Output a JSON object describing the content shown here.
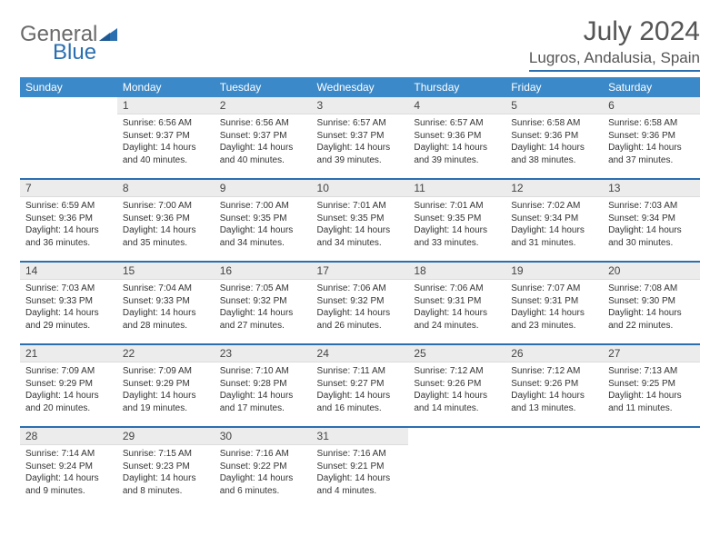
{
  "logo": {
    "word1": "General",
    "word2": "Blue"
  },
  "header": {
    "title": "July 2024",
    "location": "Lugros, Andalusia, Spain"
  },
  "styling": {
    "page_bg": "#ffffff",
    "accent": "#2b6fb0",
    "header_row_bg": "#3b89c9",
    "header_row_fg": "#ffffff",
    "daynum_bg": "#ececec",
    "text_color": "#333333",
    "logo_gray": "#6a6a6a",
    "title_fontsize": 30,
    "location_fontsize": 17,
    "th_fontsize": 12,
    "daynum_fontsize": 12,
    "body_fontsize": 10
  },
  "weekdays": [
    "Sunday",
    "Monday",
    "Tuesday",
    "Wednesday",
    "Thursday",
    "Friday",
    "Saturday"
  ],
  "start_offset": 1,
  "days_in_month": 31,
  "days": {
    "1": {
      "sunrise": "6:56 AM",
      "sunset": "9:37 PM",
      "daylight": "14 hours and 40 minutes."
    },
    "2": {
      "sunrise": "6:56 AM",
      "sunset": "9:37 PM",
      "daylight": "14 hours and 40 minutes."
    },
    "3": {
      "sunrise": "6:57 AM",
      "sunset": "9:37 PM",
      "daylight": "14 hours and 39 minutes."
    },
    "4": {
      "sunrise": "6:57 AM",
      "sunset": "9:36 PM",
      "daylight": "14 hours and 39 minutes."
    },
    "5": {
      "sunrise": "6:58 AM",
      "sunset": "9:36 PM",
      "daylight": "14 hours and 38 minutes."
    },
    "6": {
      "sunrise": "6:58 AM",
      "sunset": "9:36 PM",
      "daylight": "14 hours and 37 minutes."
    },
    "7": {
      "sunrise": "6:59 AM",
      "sunset": "9:36 PM",
      "daylight": "14 hours and 36 minutes."
    },
    "8": {
      "sunrise": "7:00 AM",
      "sunset": "9:36 PM",
      "daylight": "14 hours and 35 minutes."
    },
    "9": {
      "sunrise": "7:00 AM",
      "sunset": "9:35 PM",
      "daylight": "14 hours and 34 minutes."
    },
    "10": {
      "sunrise": "7:01 AM",
      "sunset": "9:35 PM",
      "daylight": "14 hours and 34 minutes."
    },
    "11": {
      "sunrise": "7:01 AM",
      "sunset": "9:35 PM",
      "daylight": "14 hours and 33 minutes."
    },
    "12": {
      "sunrise": "7:02 AM",
      "sunset": "9:34 PM",
      "daylight": "14 hours and 31 minutes."
    },
    "13": {
      "sunrise": "7:03 AM",
      "sunset": "9:34 PM",
      "daylight": "14 hours and 30 minutes."
    },
    "14": {
      "sunrise": "7:03 AM",
      "sunset": "9:33 PM",
      "daylight": "14 hours and 29 minutes."
    },
    "15": {
      "sunrise": "7:04 AM",
      "sunset": "9:33 PM",
      "daylight": "14 hours and 28 minutes."
    },
    "16": {
      "sunrise": "7:05 AM",
      "sunset": "9:32 PM",
      "daylight": "14 hours and 27 minutes."
    },
    "17": {
      "sunrise": "7:06 AM",
      "sunset": "9:32 PM",
      "daylight": "14 hours and 26 minutes."
    },
    "18": {
      "sunrise": "7:06 AM",
      "sunset": "9:31 PM",
      "daylight": "14 hours and 24 minutes."
    },
    "19": {
      "sunrise": "7:07 AM",
      "sunset": "9:31 PM",
      "daylight": "14 hours and 23 minutes."
    },
    "20": {
      "sunrise": "7:08 AM",
      "sunset": "9:30 PM",
      "daylight": "14 hours and 22 minutes."
    },
    "21": {
      "sunrise": "7:09 AM",
      "sunset": "9:29 PM",
      "daylight": "14 hours and 20 minutes."
    },
    "22": {
      "sunrise": "7:09 AM",
      "sunset": "9:29 PM",
      "daylight": "14 hours and 19 minutes."
    },
    "23": {
      "sunrise": "7:10 AM",
      "sunset": "9:28 PM",
      "daylight": "14 hours and 17 minutes."
    },
    "24": {
      "sunrise": "7:11 AM",
      "sunset": "9:27 PM",
      "daylight": "14 hours and 16 minutes."
    },
    "25": {
      "sunrise": "7:12 AM",
      "sunset": "9:26 PM",
      "daylight": "14 hours and 14 minutes."
    },
    "26": {
      "sunrise": "7:12 AM",
      "sunset": "9:26 PM",
      "daylight": "14 hours and 13 minutes."
    },
    "27": {
      "sunrise": "7:13 AM",
      "sunset": "9:25 PM",
      "daylight": "14 hours and 11 minutes."
    },
    "28": {
      "sunrise": "7:14 AM",
      "sunset": "9:24 PM",
      "daylight": "14 hours and 9 minutes."
    },
    "29": {
      "sunrise": "7:15 AM",
      "sunset": "9:23 PM",
      "daylight": "14 hours and 8 minutes."
    },
    "30": {
      "sunrise": "7:16 AM",
      "sunset": "9:22 PM",
      "daylight": "14 hours and 6 minutes."
    },
    "31": {
      "sunrise": "7:16 AM",
      "sunset": "9:21 PM",
      "daylight": "14 hours and 4 minutes."
    }
  },
  "labels": {
    "sunrise": "Sunrise:",
    "sunset": "Sunset:",
    "daylight": "Daylight:"
  }
}
